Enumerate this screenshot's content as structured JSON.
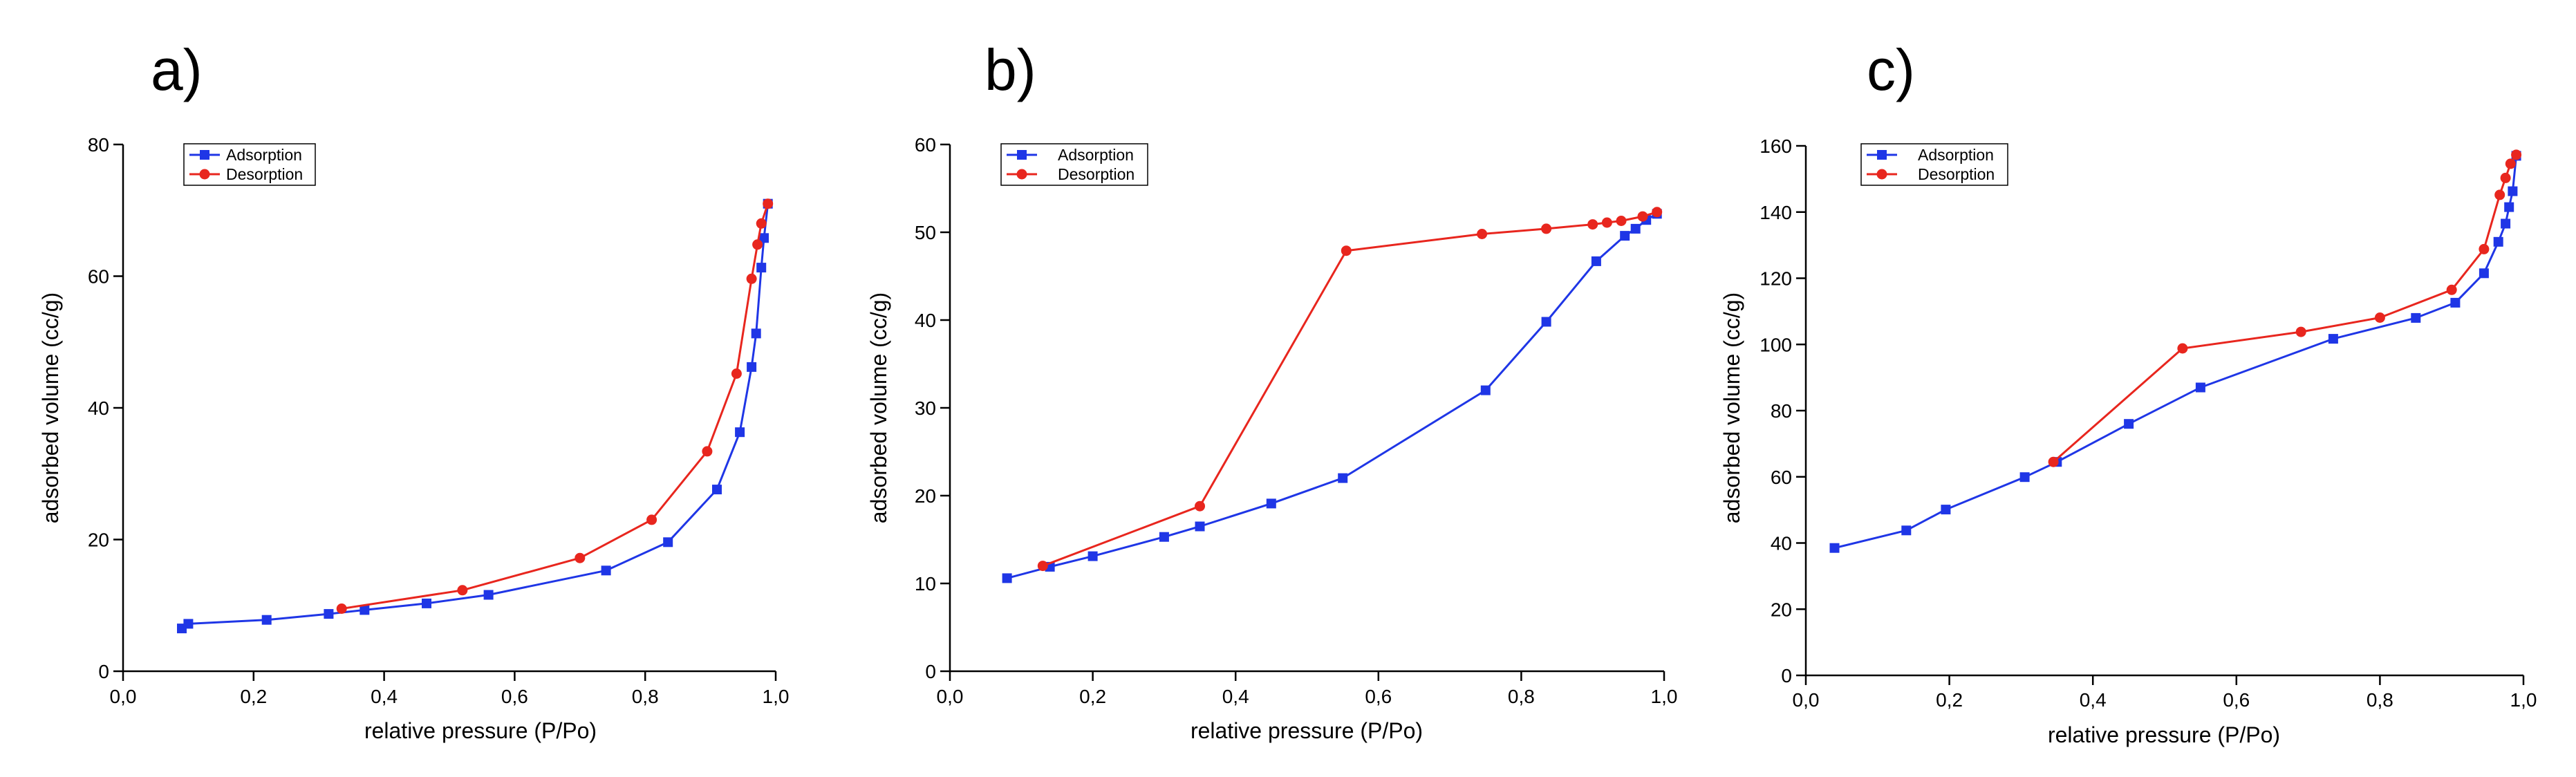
{
  "colors": {
    "adsorption": "#1f36e6",
    "desorption": "#e8261e",
    "axis": "#000000",
    "background": "#ffffff"
  },
  "chart_data": [
    {
      "panel_label": "a)",
      "type": "line",
      "xlabel": "relative pressure (P/Po)",
      "ylabel": "adsorbed volume (cc/g)",
      "xlim": [
        0,
        1.0
      ],
      "ylim": [
        0,
        80
      ],
      "xticks": [
        0,
        0.2,
        0.4,
        0.6,
        0.8,
        1.0
      ],
      "xtick_labels": [
        "0,0",
        "0,2",
        "0,4",
        "0,6",
        "0,8",
        "1,0"
      ],
      "yticks": [
        0,
        20,
        40,
        60,
        80
      ],
      "ytick_labels": [
        "0",
        "20",
        "40",
        "60",
        "80"
      ],
      "legend": [
        "Adsorption",
        "Desorption"
      ],
      "series": [
        {
          "name": "Adsorption",
          "marker": "square",
          "color": "#1f36e6",
          "x": [
            0.09,
            0.1,
            0.22,
            0.315,
            0.37,
            0.465,
            0.56,
            0.74,
            0.835,
            0.91,
            0.945,
            0.963,
            0.97,
            0.978,
            0.982,
            0.988
          ],
          "y": [
            6.5,
            7.2,
            7.8,
            8.7,
            9.3,
            10.3,
            11.6,
            15.3,
            19.6,
            27.6,
            36.3,
            46.2,
            51.3,
            61.3,
            65.8,
            71.0
          ]
        },
        {
          "name": "Desorption",
          "marker": "circle",
          "color": "#e8261e",
          "x": [
            0.335,
            0.52,
            0.7,
            0.81,
            0.895,
            0.94,
            0.963,
            0.972,
            0.978,
            0.988
          ],
          "y": [
            9.5,
            12.3,
            17.2,
            23.0,
            33.4,
            45.2,
            59.6,
            64.8,
            68.0,
            71.0
          ]
        }
      ]
    },
    {
      "panel_label": "b)",
      "type": "line",
      "xlabel": "relative pressure (P/Po)",
      "ylabel": "adsorbed volume (cc/g)",
      "xlim": [
        0,
        1.0
      ],
      "ylim": [
        0,
        60
      ],
      "xticks": [
        0,
        0.2,
        0.4,
        0.6,
        0.8,
        1.0
      ],
      "xtick_labels": [
        "0,0",
        "0,2",
        "0,4",
        "0,6",
        "0,8",
        "1,0"
      ],
      "yticks": [
        0,
        10,
        20,
        30,
        40,
        50,
        60
      ],
      "ytick_labels": [
        "0",
        "10",
        "20",
        "30",
        "40",
        "50",
        "60"
      ],
      "legend": [
        "Adsorption",
        "Desorption"
      ],
      "series": [
        {
          "name": "Adsorption",
          "marker": "square",
          "color": "#1f36e6",
          "x": [
            0.08,
            0.14,
            0.2,
            0.3,
            0.35,
            0.45,
            0.55,
            0.75,
            0.835,
            0.905,
            0.945,
            0.96,
            0.975,
            0.99
          ],
          "y": [
            10.6,
            11.9,
            13.1,
            15.3,
            16.5,
            19.1,
            22.0,
            32.0,
            39.8,
            46.7,
            49.6,
            50.4,
            51.4,
            52.1
          ]
        },
        {
          "name": "Desorption",
          "marker": "circle",
          "color": "#e8261e",
          "x": [
            0.13,
            0.35,
            0.555,
            0.745,
            0.835,
            0.9,
            0.92,
            0.94,
            0.97,
            0.99
          ],
          "y": [
            12.0,
            18.8,
            47.9,
            49.8,
            50.4,
            50.9,
            51.1,
            51.3,
            51.8,
            52.3
          ]
        }
      ]
    },
    {
      "panel_label": "c)",
      "type": "line",
      "xlabel": "relative pressure (P/Po)",
      "ylabel": "adsorbed volume (cc/g)",
      "xlim": [
        0,
        1.0
      ],
      "ylim": [
        0,
        160
      ],
      "xticks": [
        0,
        0.2,
        0.4,
        0.6,
        0.8,
        1.0
      ],
      "xtick_labels": [
        "0,0",
        "0,2",
        "0,4",
        "0,6",
        "0,8",
        "1,0"
      ],
      "yticks": [
        0,
        20,
        40,
        60,
        80,
        100,
        120,
        140,
        160
      ],
      "ytick_labels": [
        "0",
        "20",
        "40",
        "60",
        "80",
        "100",
        "120",
        "140",
        "160"
      ],
      "legend": [
        "Adsorption",
        "Desorption"
      ],
      "series": [
        {
          "name": "Adsorption",
          "marker": "square",
          "color": "#1f36e6",
          "x": [
            0.04,
            0.14,
            0.195,
            0.305,
            0.35,
            0.45,
            0.55,
            0.735,
            0.85,
            0.905,
            0.945,
            0.965,
            0.975,
            0.98,
            0.985,
            0.99
          ],
          "y": [
            38.5,
            43.8,
            50.1,
            59.9,
            64.5,
            76.0,
            87.0,
            101.7,
            108.0,
            112.6,
            121.5,
            131.0,
            136.5,
            141.5,
            146.3,
            157.0
          ]
        },
        {
          "name": "Desorption",
          "marker": "circle",
          "color": "#e8261e",
          "x": [
            0.345,
            0.525,
            0.69,
            0.8,
            0.9,
            0.945,
            0.967,
            0.975,
            0.982,
            0.99
          ],
          "y": [
            64.5,
            98.8,
            103.8,
            108.1,
            116.5,
            128.8,
            145.2,
            150.3,
            154.6,
            157.3
          ]
        }
      ]
    }
  ]
}
